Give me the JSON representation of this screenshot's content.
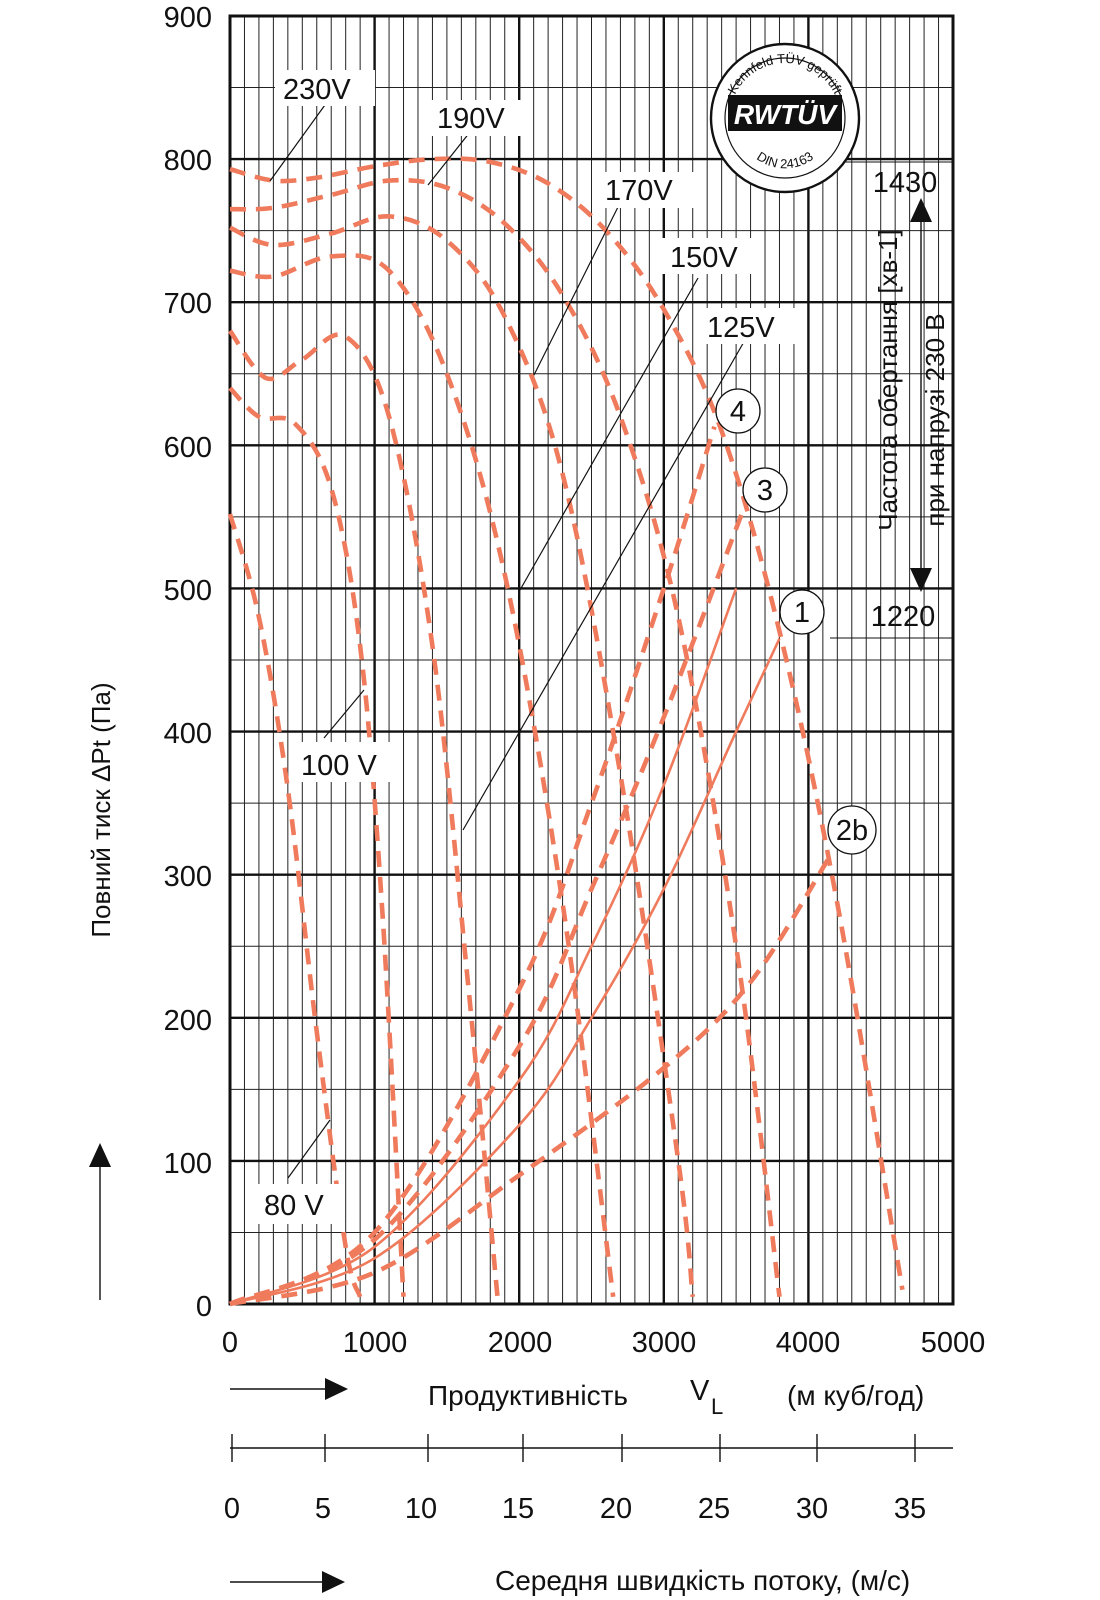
{
  "colors": {
    "curve": "#ef7a5c",
    "grid": "#222222",
    "text": "#111111"
  },
  "y_axis": {
    "title": "Повний тиск ΔPt (Па)",
    "ticks": [
      "0",
      "100",
      "200",
      "300",
      "400",
      "500",
      "600",
      "700",
      "800",
      "900"
    ]
  },
  "x_axis": {
    "ticks": [
      "0",
      "1000",
      "2000",
      "3000",
      "4000",
      "5000"
    ],
    "title_main": "Продуктивність",
    "title_symbol": "V",
    "title_subscript": "L",
    "title_unit": "(м куб/год)"
  },
  "x_axis2": {
    "ticks": [
      "0",
      "5",
      "10",
      "15",
      "20",
      "25",
      "30",
      "35"
    ],
    "title": "Середня швидкість потоку, (м/с)"
  },
  "right_axis": {
    "title_line1": "Частота обертання [хв-1]",
    "title_line2": "при напрузі 230 В",
    "top_value": "1430",
    "bottom_value": "1220"
  },
  "logo": {
    "text_top": "Kennfeld TÜV geprüft",
    "text_mid": "RWTÜV",
    "text_bottom": "DIN 24163"
  },
  "curve_labels": [
    "230V",
    "190V",
    "170V",
    "150V",
    "125V",
    "100 V",
    "80 V"
  ],
  "system_labels": [
    "4",
    "3",
    "1",
    "2b"
  ],
  "chart_data": {
    "type": "line",
    "xlabel": "Продуктивність VL (м куб/год)",
    "ylabel": "Повний тиск ΔPt (Па)",
    "xlim": [
      0,
      5000
    ],
    "ylim": [
      0,
      900
    ],
    "grid": true,
    "series": [
      {
        "name": "230V",
        "x": [
          0,
          300,
          600,
          1000,
          1400,
          1800,
          2200,
          2600,
          3000,
          3400,
          3800,
          4200,
          4650
        ],
        "y": [
          793,
          785,
          787,
          795,
          800,
          798,
          783,
          750,
          695,
          610,
          470,
          280,
          10
        ]
      },
      {
        "name": "190V",
        "x": [
          0,
          300,
          700,
          1100,
          1500,
          1900,
          2300,
          2700,
          3100,
          3500,
          3800
        ],
        "y": [
          765,
          766,
          775,
          785,
          780,
          755,
          705,
          620,
          480,
          250,
          5
        ]
      },
      {
        "name": "170V",
        "x": [
          0,
          300,
          700,
          1100,
          1500,
          1900,
          2300,
          2700,
          3100,
          3200
        ],
        "y": [
          752,
          740,
          748,
          760,
          743,
          690,
          580,
          370,
          100,
          5
        ]
      },
      {
        "name": "150V",
        "x": [
          0,
          300,
          700,
          1100,
          1500,
          1900,
          2300,
          2650
        ],
        "y": [
          722,
          718,
          732,
          722,
          650,
          510,
          280,
          5
        ]
      },
      {
        "name": "125V",
        "x": [
          0,
          250,
          500,
          800,
          1100,
          1400,
          1650,
          1850
        ],
        "y": [
          680,
          647,
          660,
          676,
          620,
          460,
          220,
          5
        ]
      },
      {
        "name": "100 V",
        "x": [
          0,
          200,
          450,
          700,
          900,
          1050,
          1200
        ],
        "y": [
          640,
          620,
          615,
          570,
          460,
          280,
          5
        ]
      },
      {
        "name": "80 V",
        "x": [
          0,
          200,
          400,
          600,
          800,
          900
        ],
        "y": [
          552,
          480,
          360,
          190,
          40,
          5
        ]
      },
      {
        "name": "4",
        "x": [
          0,
          1000,
          2000,
          2500,
          3000,
          3350
        ],
        "y": [
          0,
          50,
          220,
          350,
          500,
          613
        ]
      },
      {
        "name": "3",
        "x": [
          0,
          1000,
          2000,
          2500,
          3000,
          3550
        ],
        "y": [
          0,
          45,
          180,
          290,
          410,
          555
        ]
      },
      {
        "name": "1",
        "x": [
          0,
          1000,
          2000,
          2500,
          3000,
          3500,
          3800
        ],
        "y": [
          0,
          32,
          125,
          200,
          290,
          400,
          465
        ]
      },
      {
        "name": "2b",
        "x": [
          0,
          1000,
          2000,
          3000,
          3600,
          4150
        ],
        "y": [
          0,
          22,
          90,
          165,
          225,
          313
        ]
      }
    ]
  }
}
